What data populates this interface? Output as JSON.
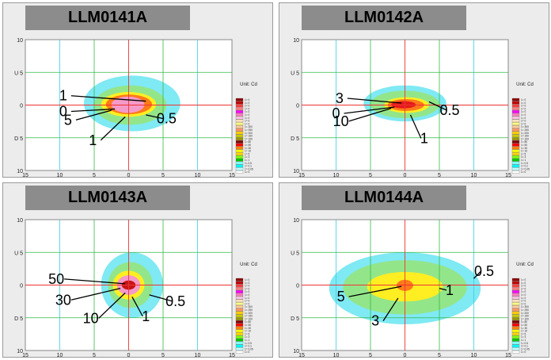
{
  "chart_data": [
    {
      "type": "contour",
      "title": "LLM0141A",
      "x_ticks": [
        "15",
        "10",
        "5",
        "0",
        "5",
        "10",
        "15"
      ],
      "y_ticks": [
        "10",
        "U 5",
        "0",
        "D 5",
        "10"
      ],
      "x_side_labels": {
        "left": "L",
        "right": "R"
      },
      "xlim": [
        -15,
        15
      ],
      "ylim": [
        -10,
        10
      ],
      "unit": "Unit: Cd",
      "contours": [
        {
          "value": 0.5,
          "x_min": -6.5,
          "x_max": 7.5,
          "y_min": -4,
          "y_max": 4.5,
          "color": "#7fe9f4"
        },
        {
          "value": 1,
          "x_min": -5,
          "x_max": 5.5,
          "y_min": -3,
          "y_max": 3,
          "color": "#93e58a"
        },
        {
          "value": 5,
          "x_min": -4,
          "x_max": 4,
          "y_min": -1.8,
          "y_max": 2,
          "color": "#ffee22"
        },
        {
          "value": 0,
          "x_min": -3.3,
          "x_max": 3.4,
          "y_min": -1.4,
          "y_max": 1.6,
          "color": "#ff7a1a"
        },
        {
          "value": 1,
          "x_min": -2.5,
          "x_max": 2.3,
          "y_min": -1.2,
          "y_max": 1.3,
          "color": "#f59ac8"
        }
      ],
      "annotations": [
        {
          "text": "1",
          "x": -9.5,
          "y": 0.7,
          "tx": 2.5,
          "ty": 0.6
        },
        {
          "text": "0",
          "x": -9.5,
          "y": -1.7,
          "tx": -2,
          "ty": -0.6
        },
        {
          "text": "5",
          "x": -8.8,
          "y": -3.0,
          "tx": -2.5,
          "ty": -0.8
        },
        {
          "text": "1",
          "x": -5.2,
          "y": -6.1,
          "tx": -0.5,
          "ty": -1.8
        },
        {
          "text": "0.5",
          "x": 5.5,
          "y": -2.8,
          "tx": 2.5,
          "ty": -1.5
        }
      ]
    },
    {
      "type": "contour",
      "title": "LLM0142A",
      "x_ticks": [
        "15",
        "10",
        "5",
        "0",
        "5",
        "10",
        "15"
      ],
      "y_ticks": [
        "10",
        "U 5",
        "0",
        "D 5",
        "10"
      ],
      "x_side_labels": {
        "left": "L",
        "right": "R"
      },
      "xlim": [
        -15,
        15
      ],
      "ylim": [
        -10,
        10
      ],
      "unit": "Unit: Cd",
      "contours": [
        {
          "value": 0.5,
          "x_min": -6,
          "x_max": 6,
          "y_min": -2.5,
          "y_max": 3,
          "color": "#7fe9f4"
        },
        {
          "value": 1,
          "x_min": -5,
          "x_max": 5,
          "y_min": -2,
          "y_max": 2.2,
          "color": "#93e58a"
        },
        {
          "value": 3,
          "x_min": -3,
          "x_max": 3.5,
          "y_min": -1.2,
          "y_max": 1.2,
          "color": "#ffee22"
        },
        {
          "value": 10,
          "x_min": -2.5,
          "x_max": 2.8,
          "y_min": -0.9,
          "y_max": 0.9,
          "color": "#ff7a1a"
        },
        {
          "value": 0,
          "x_min": -2,
          "x_max": 1.6,
          "y_min": -0.5,
          "y_max": 0.6,
          "color": "#e41a1a"
        }
      ],
      "annotations": [
        {
          "text": "3",
          "x": -9.5,
          "y": 0.3,
          "tx": -0.5,
          "ty": 0.3
        },
        {
          "text": "0",
          "x": -10,
          "y": -2.0,
          "tx": -1.5,
          "ty": -0.3
        },
        {
          "text": "10",
          "x": -9.3,
          "y": -3.2,
          "tx": -2,
          "ty": -0.5
        },
        {
          "text": "1",
          "x": 2.8,
          "y": -5.8,
          "tx": 0.8,
          "ty": -1.5
        },
        {
          "text": "0.5",
          "x": 6.5,
          "y": -1.5,
          "tx": 3.5,
          "ty": 0.5
        }
      ]
    },
    {
      "type": "contour",
      "title": "LLM0143A",
      "x_ticks": [
        "15",
        "10",
        "5",
        "0",
        "5",
        "10",
        "15"
      ],
      "y_ticks": [
        "10",
        "U 5",
        "0",
        "D 5",
        "10"
      ],
      "x_side_labels": {
        "left": "L",
        "right": "R"
      },
      "xlim": [
        -15,
        15
      ],
      "ylim": [
        -10,
        10
      ],
      "unit": "Unit: Cd",
      "contours": [
        {
          "value": 0.5,
          "x_min": -4,
          "x_max": 5,
          "y_min": -5,
          "y_max": 5,
          "color": "#7fe9f4"
        },
        {
          "value": 1,
          "x_min": -3,
          "x_max": 3.5,
          "y_min": -3.5,
          "y_max": 3.5,
          "color": "#93e58a"
        },
        {
          "value": 10,
          "x_min": -2.3,
          "x_max": 2.3,
          "y_min": -2.2,
          "y_max": 2.2,
          "color": "#ffee22"
        },
        {
          "value": 30,
          "x_min": -1.7,
          "x_max": 1.7,
          "y_min": -1.5,
          "y_max": 1.5,
          "color": "#f59ac8"
        },
        {
          "value": 50,
          "x_min": -1,
          "x_max": 1,
          "y_min": -0.7,
          "y_max": 0.7,
          "color": "#c81414"
        }
      ],
      "annotations": [
        {
          "text": "50",
          "x": -10.5,
          "y": 0.2,
          "tx": -0.5,
          "ty": 0.2
        },
        {
          "text": "30",
          "x": -9.5,
          "y": -3.0,
          "tx": -1.2,
          "ty": -0.5
        },
        {
          "text": "10",
          "x": -5.5,
          "y": -5.8,
          "tx": -0.5,
          "ty": -1.2
        },
        {
          "text": "1",
          "x": 2.5,
          "y": -5.5,
          "tx": 0.5,
          "ty": -1.8
        },
        {
          "text": "0.5",
          "x": 6.8,
          "y": -3.2,
          "tx": 3,
          "ty": -1.5
        }
      ]
    },
    {
      "type": "contour",
      "title": "LLM0144A",
      "x_ticks": [
        "15",
        "10",
        "5",
        "0",
        "5",
        "10",
        "15"
      ],
      "y_ticks": [
        "10",
        "U 5",
        "0",
        "D 5",
        "10"
      ],
      "x_side_labels": {
        "left": "L",
        "right": "R"
      },
      "xlim": [
        -15,
        15
      ],
      "ylim": [
        -10,
        10
      ],
      "unit": "Unit: Cd",
      "contours": [
        {
          "value": 0.5,
          "x_min": -11,
          "x_max": 11,
          "y_min": -6,
          "y_max": 5,
          "color": "#7fe9f4"
        },
        {
          "value": 1,
          "x_min": -9,
          "x_max": 9,
          "y_min": -4.5,
          "y_max": 3.8,
          "color": "#93e58a"
        },
        {
          "value": 3,
          "x_min": -5.5,
          "x_max": 5.5,
          "y_min": -2.5,
          "y_max": 2,
          "color": "#ffee22"
        },
        {
          "value": 5,
          "x_min": -1.2,
          "x_max": 1.2,
          "y_min": -0.9,
          "y_max": 0.8,
          "color": "#ff7a1a"
        }
      ],
      "annotations": [
        {
          "text": "0.5",
          "x": 11.5,
          "y": 1.4,
          "tx": 10,
          "ty": 1
        },
        {
          "text": "1",
          "x": 6.5,
          "y": -1.5,
          "tx": 5,
          "ty": -0.5
        },
        {
          "text": "5",
          "x": -9.3,
          "y": -2.5,
          "tx": -0.5,
          "ty": -0.2
        },
        {
          "text": "3",
          "x": -4.3,
          "y": -6.2,
          "tx": -1,
          "ty": -2
        }
      ]
    }
  ],
  "legend": {
    "title": "Unit: Cd",
    "rows": [
      {
        "text": "1= 0",
        "color": "#8b0000"
      },
      {
        "text": "1= 0",
        "color": "#c00000"
      },
      {
        "text": "1= 0",
        "color": "#ff4040"
      },
      {
        "text": "1= 0",
        "color": "#ff8080"
      },
      {
        "text": "1= 0",
        "color": "#ff00ff"
      },
      {
        "text": "1= 0",
        "color": "#ff80c0"
      },
      {
        "text": "1= 0",
        "color": "#ffc0e0"
      },
      {
        "text": "1= 0",
        "color": "#ffe0c0"
      },
      {
        "text": "1= 0",
        "color": "#ffff80"
      },
      {
        "text": "1= 300",
        "color": "#ffcc99"
      },
      {
        "text": "1= 250",
        "color": "#ff9966"
      },
      {
        "text": "1= 200",
        "color": "#ffcc00"
      },
      {
        "text": "1= 150",
        "color": "#cccc00"
      },
      {
        "text": "1= 100",
        "color": "#999900"
      },
      {
        "text": "1= 80",
        "color": "#800000"
      },
      {
        "text": "1= 50",
        "color": "#ff0000"
      },
      {
        "text": "1= 30",
        "color": "#ff8000"
      },
      {
        "text": "1= 10",
        "color": "#ffff00"
      },
      {
        "text": "1= 5",
        "color": "#ffd700"
      },
      {
        "text": "1= 3",
        "color": "#80ff00"
      },
      {
        "text": "1= 1",
        "color": "#00cc00"
      },
      {
        "text": "1= 0.5",
        "color": "#80ffff"
      },
      {
        "text": "1= 0.1",
        "color": "#00ffff"
      },
      {
        "text": "1= 0.05",
        "color": "#c0ffff"
      },
      {
        "text": "1= 0",
        "color": "#ffffff"
      }
    ]
  }
}
